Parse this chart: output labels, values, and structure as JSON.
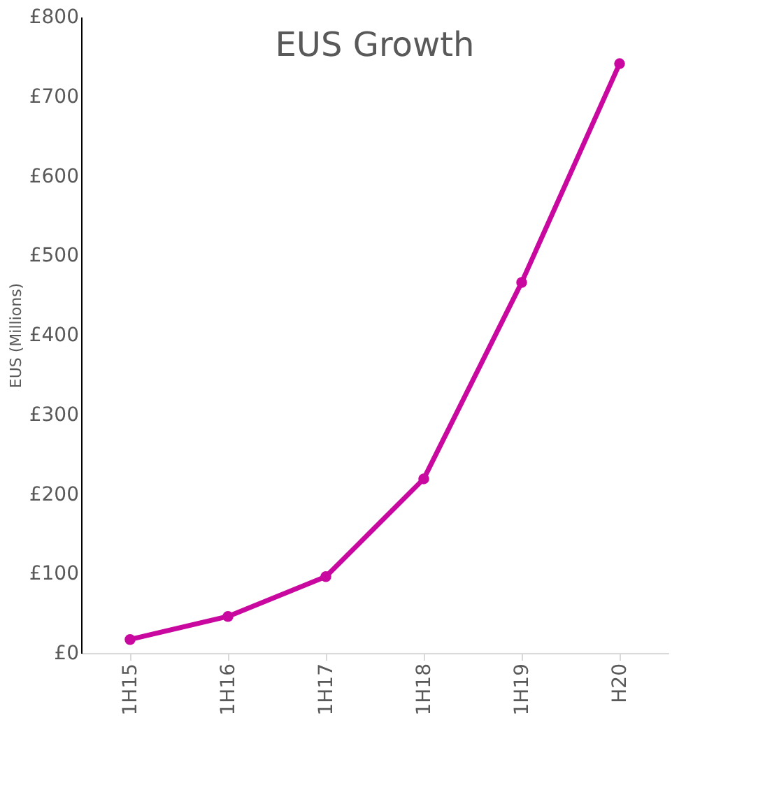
{
  "chart_data": {
    "type": "line",
    "title": "EUS Growth",
    "ylabel": "EUS (Millions)",
    "categories": [
      "1H15",
      "1H16",
      "1H17",
      "1H18",
      "1H19",
      "H20"
    ],
    "series": [
      {
        "color": "#c8089e",
        "values": [
          17,
          46,
          96,
          219,
          466,
          741
        ]
      }
    ],
    "ylim": [
      0,
      800
    ],
    "yticks": [
      {
        "value": 0,
        "label": "£0"
      },
      {
        "value": 100,
        "label": "£100"
      },
      {
        "value": 200,
        "label": "£200"
      },
      {
        "value": 300,
        "label": "£300"
      },
      {
        "value": 400,
        "label": "£400"
      },
      {
        "value": 500,
        "label": "£500"
      },
      {
        "value": 600,
        "label": "£600"
      },
      {
        "value": 700,
        "label": "£700"
      },
      {
        "value": 800,
        "label": "£800"
      }
    ],
    "grid": false,
    "marker": "circle",
    "line_style": "solid"
  }
}
